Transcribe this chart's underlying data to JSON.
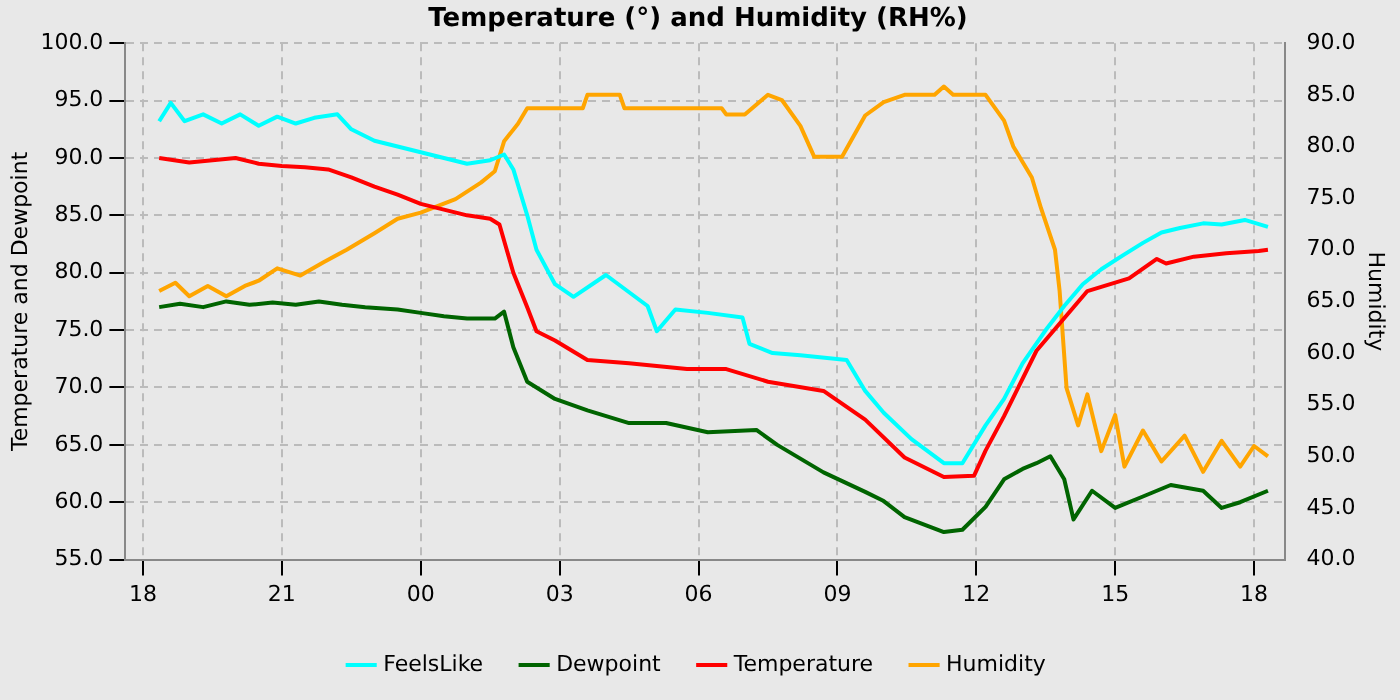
{
  "chart_data": {
    "type": "line",
    "title": "Temperature (°) and Humidity (RH%)",
    "ylabel": "Temperature and Dewpoint",
    "y2label": "Humidity",
    "xlim": [
      17.62,
      42.66
    ],
    "xticks": [
      {
        "value": 18,
        "label": "18"
      },
      {
        "value": 21,
        "label": "21"
      },
      {
        "value": 24,
        "label": "00"
      },
      {
        "value": 27,
        "label": "03"
      },
      {
        "value": 30,
        "label": "06"
      },
      {
        "value": 33,
        "label": "09"
      },
      {
        "value": 36,
        "label": "12"
      },
      {
        "value": 39,
        "label": "15"
      },
      {
        "value": 42,
        "label": "18"
      }
    ],
    "ylim": [
      55,
      100
    ],
    "yticks": [
      {
        "value": 55,
        "label": "55.0"
      },
      {
        "value": 60,
        "label": "60.0"
      },
      {
        "value": 65,
        "label": "65.0"
      },
      {
        "value": 70,
        "label": "70.0"
      },
      {
        "value": 75,
        "label": "75.0"
      },
      {
        "value": 80,
        "label": "80.0"
      },
      {
        "value": 85,
        "label": "85.0"
      },
      {
        "value": 90,
        "label": "90.0"
      },
      {
        "value": 95,
        "label": "95.0"
      },
      {
        "value": 100,
        "label": "100.0"
      }
    ],
    "y2lim": [
      40,
      90
    ],
    "y2ticks": [
      {
        "value": 40,
        "label": "40.0"
      },
      {
        "value": 45,
        "label": "45.0"
      },
      {
        "value": 50,
        "label": "50.0"
      },
      {
        "value": 55,
        "label": "55.0"
      },
      {
        "value": 60,
        "label": "60.0"
      },
      {
        "value": 65,
        "label": "65.0"
      },
      {
        "value": 70,
        "label": "70.0"
      },
      {
        "value": 75,
        "label": "75.0"
      },
      {
        "value": 80,
        "label": "80.0"
      },
      {
        "value": 85,
        "label": "85.0"
      },
      {
        "value": 90,
        "label": "90.0"
      }
    ],
    "grid": true,
    "legend": "bottom",
    "marker": "none",
    "line_style": "solid",
    "series": [
      {
        "name": "FeelsLike",
        "color": "#00ffff",
        "x": [
          18.35,
          18.6,
          18.9,
          19.3,
          19.7,
          20.1,
          20.5,
          20.9,
          21.3,
          21.7,
          22.2,
          22.5,
          23.0,
          23.5,
          24.0,
          24.5,
          25.0,
          25.5,
          25.8,
          26.0,
          26.3,
          26.5,
          26.9,
          27.3,
          28.0,
          28.9,
          29.1,
          29.5,
          30.2,
          30.95,
          31.1,
          31.6,
          32.2,
          33.2,
          33.6,
          34.0,
          34.6,
          35.3,
          35.7,
          36.2,
          36.6,
          37.0,
          37.5,
          37.9,
          38.3,
          38.7,
          39.2,
          39.6,
          40.0,
          40.4,
          40.9,
          41.3,
          41.8,
          42.3
        ],
        "values": [
          93.2,
          94.8,
          93.2,
          93.8,
          93.0,
          93.8,
          92.8,
          93.6,
          93.0,
          93.5,
          93.8,
          92.5,
          91.5,
          91.0,
          90.5,
          90.0,
          89.5,
          89.8,
          90.3,
          89.0,
          85.0,
          82.0,
          79.0,
          77.9,
          79.8,
          77.1,
          74.9,
          76.8,
          76.5,
          76.1,
          73.8,
          73.0,
          72.8,
          72.4,
          69.7,
          67.8,
          65.5,
          63.4,
          63.4,
          66.7,
          69.0,
          72.1,
          75.0,
          77.1,
          79.0,
          80.3,
          81.6,
          82.6,
          83.5,
          83.9,
          84.3,
          84.2,
          84.6,
          84.0
        ]
      },
      {
        "name": "Dewpoint",
        "color": "#006400",
        "x": [
          18.35,
          18.8,
          19.3,
          19.8,
          20.3,
          20.8,
          21.3,
          21.8,
          22.3,
          22.8,
          23.5,
          24.0,
          24.5,
          25.0,
          25.6,
          25.8,
          26.0,
          26.3,
          26.9,
          27.6,
          28.5,
          29.3,
          30.2,
          31.25,
          31.7,
          32.7,
          33.6,
          34.0,
          34.45,
          35.3,
          35.7,
          36.2,
          36.6,
          37.0,
          37.3,
          37.6,
          37.9,
          38.1,
          38.5,
          39.0,
          39.6,
          40.2,
          40.9,
          41.3,
          41.7,
          42.3
        ],
        "values": [
          77.0,
          77.3,
          77.0,
          77.5,
          77.2,
          77.4,
          77.2,
          77.5,
          77.2,
          77.0,
          76.8,
          76.5,
          76.2,
          76.0,
          76.0,
          76.6,
          73.5,
          70.5,
          69.0,
          68.0,
          66.9,
          66.9,
          66.1,
          66.3,
          65.0,
          62.6,
          60.9,
          60.1,
          58.7,
          57.4,
          57.6,
          59.6,
          62.0,
          62.9,
          63.4,
          64.0,
          62.0,
          58.5,
          61.0,
          59.5,
          60.5,
          61.5,
          61.0,
          59.5,
          60.0,
          61.0
        ]
      },
      {
        "name": "Temperature",
        "color": "#ff0000",
        "x": [
          18.35,
          19.0,
          19.5,
          20.0,
          20.5,
          21.0,
          21.5,
          22.0,
          22.5,
          23.0,
          23.5,
          24.0,
          24.5,
          25.0,
          25.5,
          25.7,
          26.0,
          26.3,
          26.5,
          26.9,
          27.6,
          28.5,
          29.75,
          30.6,
          31.5,
          32.7,
          33.6,
          34.45,
          35.3,
          35.95,
          36.2,
          36.6,
          37.3,
          38.4,
          39.3,
          39.9,
          40.1,
          40.7,
          41.4,
          42.1,
          42.3
        ],
        "values": [
          90.0,
          89.6,
          89.8,
          90.0,
          89.5,
          89.3,
          89.2,
          89.0,
          88.3,
          87.5,
          86.8,
          86.0,
          85.5,
          85.0,
          84.7,
          84.2,
          80.0,
          77.0,
          74.9,
          74.1,
          72.4,
          72.1,
          71.6,
          71.6,
          70.5,
          69.7,
          67.2,
          63.9,
          62.2,
          62.3,
          64.5,
          67.5,
          73.2,
          78.4,
          79.5,
          81.2,
          80.8,
          81.4,
          81.7,
          81.9,
          82.0
        ]
      },
      {
        "name": "Humidity",
        "color": "#ffa500",
        "axis": "y2",
        "x": [
          18.35,
          18.7,
          19.0,
          19.4,
          19.8,
          20.2,
          20.5,
          20.9,
          21.4,
          21.9,
          22.4,
          23.0,
          23.5,
          24.0,
          24.75,
          25.3,
          25.6,
          25.8,
          26.1,
          26.3,
          27.5,
          27.6,
          28.3,
          28.4,
          30.5,
          30.6,
          31.0,
          31.5,
          31.8,
          32.2,
          32.5,
          33.1,
          33.6,
          34.0,
          34.45,
          35.1,
          35.3,
          35.5,
          36.2,
          36.6,
          36.8,
          37.0,
          37.2,
          37.4,
          37.7,
          37.8,
          37.95,
          38.2,
          38.4,
          38.7,
          39.0,
          39.2,
          39.6,
          40.0,
          40.5,
          40.9,
          41.3,
          41.7,
          42.0,
          42.3
        ],
        "values": [
          66.0,
          66.8,
          65.5,
          66.5,
          65.5,
          66.5,
          67.0,
          68.2,
          67.5,
          68.8,
          70.0,
          71.6,
          73.0,
          73.6,
          74.9,
          76.5,
          77.6,
          80.5,
          82.2,
          83.7,
          83.7,
          85.0,
          85.0,
          83.7,
          83.7,
          83.1,
          83.1,
          85.0,
          84.5,
          82.0,
          79.0,
          79.0,
          83.0,
          84.3,
          85.0,
          85.0,
          85.8,
          85.0,
          85.0,
          82.5,
          80.0,
          78.5,
          77.0,
          74.0,
          70.0,
          66.0,
          56.6,
          53.0,
          56.0,
          50.5,
          54.0,
          49.0,
          52.5,
          49.5,
          52.0,
          48.5,
          51.5,
          49.0,
          51.0,
          50.0
        ]
      }
    ]
  }
}
